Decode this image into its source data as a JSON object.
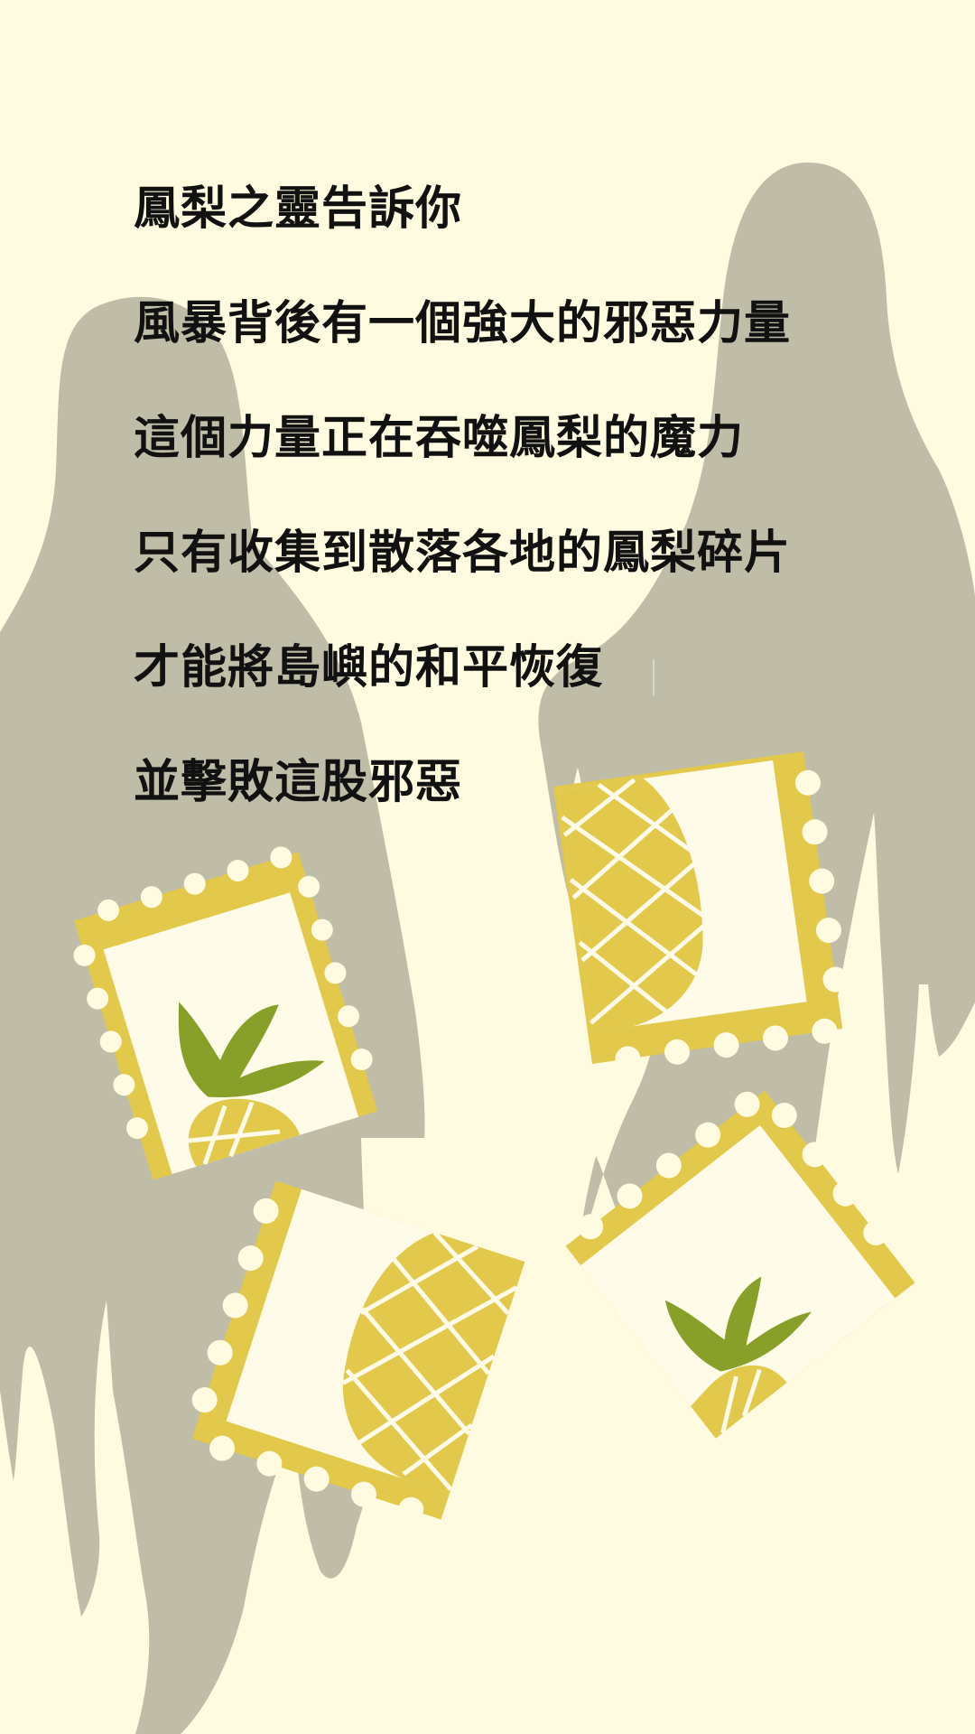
{
  "story": {
    "lines": [
      "鳳梨之靈告訴你",
      "風暴背後有一個強大的邪惡力量",
      "這個力量正在吞噬鳳梨的魔力",
      "只有收集到散落各地的鳳梨碎片",
      "才能將島嶼的和平恢復",
      "並擊敗這股邪惡"
    ]
  },
  "colors": {
    "background": "#fffbe0",
    "ghost": "#bfbca8",
    "stamp_border": "#e2c84b",
    "stamp_paper": "#fefbe8",
    "pineapple_body": "#e2c84b",
    "pineapple_grid": "#fefbe8",
    "leaf": "#88a02a",
    "text": "#111111"
  },
  "icons": {
    "ghost_left": "ghost-silhouette-icon",
    "ghost_right": "ghost-silhouette-icon",
    "stamps": "pineapple-stamp-icon"
  }
}
